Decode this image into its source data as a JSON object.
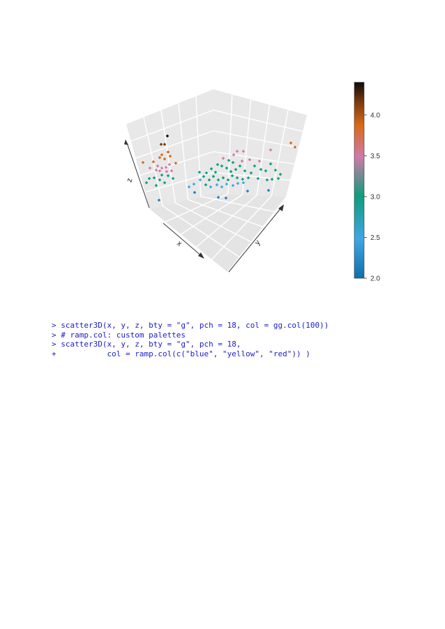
{
  "chart_data": {
    "type": "scatter",
    "projection": "3d",
    "box_type": "g",
    "grid": true,
    "axes": {
      "xlabel": "x",
      "ylabel": "y",
      "zlabel": "z"
    },
    "colorkey": {
      "ticks": [
        "2.0",
        "2.5",
        "3.0",
        "3.5",
        "4.0"
      ],
      "range": [
        2.0,
        4.4
      ],
      "colors": [
        "#0f6fad",
        "#3fa6e4",
        "#0e9d7e",
        "#d07aaa",
        "#d96a17",
        "#7a3a0d",
        "#0c0c0c"
      ]
    },
    "points_var": "col"
  },
  "code": {
    "lines": [
      "> scatter3D(x, y, z, bty = \"g\", pch = 18, col = gg.col(100))",
      "> # ramp.col: custom palettes",
      "> scatter3D(x, y, z, bty = \"g\", pch = 18,",
      "+           col = ramp.col(c(\"blue\", \"yellow\", \"red\")) )"
    ]
  }
}
